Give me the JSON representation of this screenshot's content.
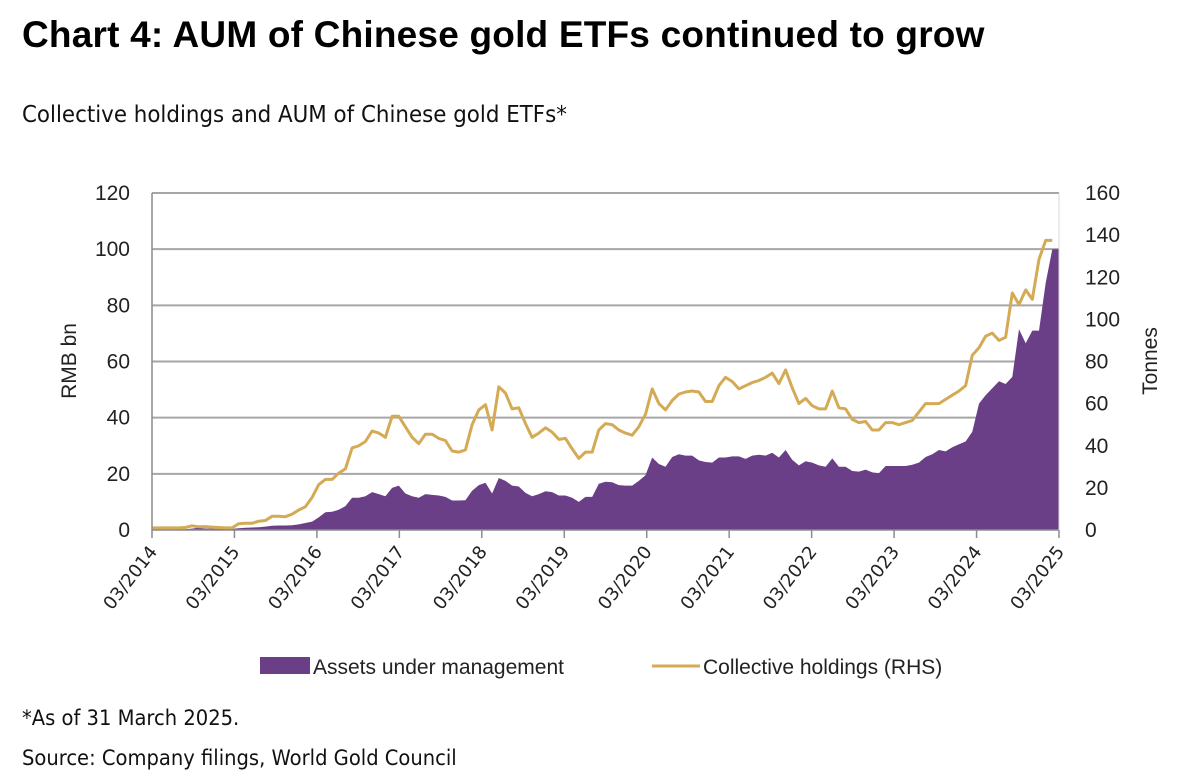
{
  "header": {
    "title": "Chart 4: AUM of Chinese gold ETFs continued to grow",
    "subtitle": "Collective holdings and AUM of Chinese gold ETFs*"
  },
  "footer": {
    "as_of_note": "*As of 31 March 2025.",
    "source": "Source: Company filings, World Gold Council"
  },
  "colors": {
    "aum_fill": "#6b3f87",
    "holdings_line": "#d4aa55",
    "gridline": "#a6a6a6",
    "axis": "#8c8c8c"
  },
  "chart_data": {
    "type": "area",
    "title": "Collective holdings and AUM of Chinese gold ETFs*",
    "x_start": "03/2014",
    "x_end": "03/2025",
    "x_frequency": "monthly",
    "x_tick_labels": [
      "03/2014",
      "03/2015",
      "03/2016",
      "03/2017",
      "03/2018",
      "03/2019",
      "03/2020",
      "03/2021",
      "03/2022",
      "03/2023",
      "03/2024",
      "03/2025"
    ],
    "y_left": {
      "label": "RMB bn",
      "range": [
        0,
        120
      ],
      "ticks": [
        0,
        20,
        40,
        60,
        80,
        100,
        120
      ]
    },
    "y_right": {
      "label": "Tonnes",
      "range": [
        0,
        160
      ],
      "ticks": [
        0,
        20,
        40,
        60,
        80,
        100,
        120,
        140,
        160
      ]
    },
    "grid": true,
    "legend_position": "bottom",
    "series": [
      {
        "name": "Assets under management",
        "type": "area",
        "axis": "left",
        "values": [
          0.3,
          0.3,
          0.3,
          0.3,
          0.3,
          0.3,
          0.5,
          0.8,
          0.5,
          0.5,
          0.4,
          0.4,
          0.4,
          0.6,
          0.8,
          0.9,
          1.0,
          1.2,
          1.5,
          1.6,
          1.6,
          1.7,
          2.0,
          2.5,
          3.0,
          4.5,
          6.3,
          6.5,
          7.2,
          8.5,
          11.5,
          11.5,
          12.0,
          13.5,
          12.8,
          12.0,
          15.0,
          15.8,
          13.0,
          12.0,
          11.5,
          12.8,
          12.5,
          12.3,
          11.8,
          10.5,
          10.5,
          10.6,
          14.0,
          16.0,
          16.8,
          13.0,
          18.5,
          17.5,
          15.8,
          15.5,
          13.2,
          12.0,
          12.8,
          13.8,
          13.5,
          12.3,
          12.3,
          11.5,
          10.0,
          11.8,
          11.8,
          16.5,
          17.2,
          17.0,
          16.0,
          15.8,
          15.8,
          17.5,
          19.5,
          25.8,
          23.5,
          22.5,
          26.0,
          27.0,
          26.5,
          26.5,
          24.8,
          24.2,
          24.0,
          25.8,
          25.8,
          26.2,
          26.2,
          25.3,
          26.5,
          26.8,
          26.5,
          27.5,
          25.8,
          28.5,
          25.0,
          23.0,
          24.5,
          24.0,
          23.0,
          22.5,
          25.5,
          22.5,
          22.5,
          21.0,
          20.8,
          21.5,
          20.5,
          20.2,
          22.8,
          22.8,
          22.8,
          22.8,
          23.2,
          24.0,
          26.0,
          27.0,
          28.5,
          28.0,
          29.5,
          30.5,
          31.5,
          35.0,
          45.0,
          48.0,
          50.5,
          53.0,
          52.0,
          54.5,
          71.5,
          66.5,
          71.0,
          71.0,
          88.0,
          100.0,
          100.0
        ]
      },
      {
        "name": "Collective holdings (RHS)",
        "type": "line",
        "axis": "right",
        "values": [
          1.0,
          1.0,
          1.0,
          1.0,
          1.0,
          1.2,
          2.0,
          1.5,
          1.6,
          1.4,
          1.2,
          1.0,
          1.0,
          3.0,
          3.2,
          3.2,
          4.2,
          4.5,
          6.5,
          6.5,
          6.3,
          7.5,
          9.5,
          11.0,
          15.5,
          21.5,
          24.0,
          24.0,
          27.0,
          29.0,
          39.0,
          40.0,
          42.0,
          47.0,
          46.0,
          44.0,
          54.0,
          54.0,
          49.0,
          44.0,
          41.0,
          45.5,
          45.5,
          43.5,
          42.5,
          37.5,
          37.0,
          38.0,
          50.0,
          57.0,
          59.5,
          47.5,
          68.0,
          65.0,
          57.5,
          58.0,
          50.5,
          44.0,
          46.0,
          48.5,
          46.5,
          43.0,
          43.5,
          38.5,
          34.0,
          37.0,
          37.0,
          47.5,
          50.5,
          50.0,
          47.5,
          46.0,
          45.0,
          49.0,
          55.0,
          67.0,
          60.0,
          57.0,
          61.5,
          64.5,
          65.5,
          66.0,
          65.5,
          61.0,
          61.0,
          68.5,
          72.5,
          70.5,
          67.0,
          68.5,
          70.0,
          71.0,
          72.5,
          74.5,
          69.5,
          76.0,
          67.5,
          60.0,
          62.5,
          59.0,
          57.5,
          57.5,
          66.0,
          58.0,
          57.5,
          52.5,
          51.0,
          51.5,
          47.5,
          47.5,
          51.0,
          51.0,
          50.0,
          51.0,
          52.0,
          56.0,
          60.0,
          60.0,
          60.0,
          62.0,
          64.0,
          66.0,
          68.5,
          83.0,
          86.5,
          92.0,
          93.5,
          90.0,
          91.5,
          112.5,
          107.0,
          114.0,
          109.5,
          128.5,
          137.5,
          137.5
        ]
      }
    ]
  }
}
